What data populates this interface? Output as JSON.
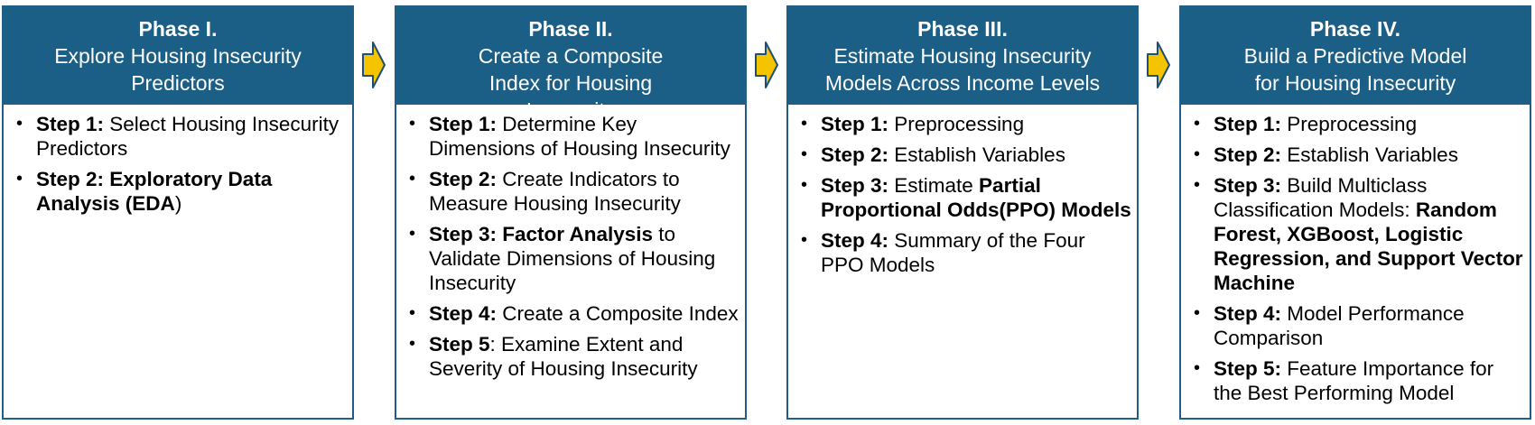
{
  "colors": {
    "header_bg": "#1b5e86",
    "border": "#1f5f86",
    "arrow_fill": "#f5c400",
    "arrow_stroke": "#1f4e79"
  },
  "phases": [
    {
      "title": "Phase I.",
      "subtitle": "Explore Housing Insecurity Predictors",
      "steps": [
        [
          {
            "t": "Step 1:",
            "b": true
          },
          {
            "t": " Select Housing Insecurity Predictors",
            "b": false
          }
        ],
        [
          {
            "t": "Step 2: Exploratory Data Analysis (EDA",
            "b": true
          },
          {
            "t": ")",
            "b": false
          }
        ]
      ]
    },
    {
      "title": "Phase II.",
      "subtitle": "Create a Composite Index for Housing Insecurity",
      "steps": [
        [
          {
            "t": "Step 1:",
            "b": true
          },
          {
            "t": " Determine Key Dimensions of Housing Insecurity",
            "b": false
          }
        ],
        [
          {
            "t": "Step 2:",
            "b": true
          },
          {
            "t": " Create Indicators to Measure Housing Insecurity",
            "b": false
          }
        ],
        [
          {
            "t": "Step 3: Factor Analysis",
            "b": true
          },
          {
            "t": " to Validate Dimensions of Housing Insecurity",
            "b": false
          }
        ],
        [
          {
            "t": "Step 4:",
            "b": true
          },
          {
            "t": " Create a Composite Index",
            "b": false
          }
        ],
        [
          {
            "t": "Step 5",
            "b": true
          },
          {
            "t": ": Examine Extent and Severity of Housing Insecurity",
            "b": false
          }
        ]
      ]
    },
    {
      "title": "Phase III.",
      "subtitle": "Estimate Housing Insecurity Models Across Income Levels",
      "steps": [
        [
          {
            "t": "Step 1:",
            "b": true
          },
          {
            "t": " Preprocessing",
            "b": false
          }
        ],
        [
          {
            "t": "Step 2:",
            "b": true
          },
          {
            "t": " Establish Variables",
            "b": false
          }
        ],
        [
          {
            "t": "Step 3:",
            "b": true
          },
          {
            "t": " Estimate ",
            "b": false
          },
          {
            "t": "Partial Proportional Odds(PPO) Models",
            "b": true
          }
        ],
        [
          {
            "t": "Step 4:",
            "b": true
          },
          {
            "t": " Summary of the Four PPO Models",
            "b": false
          }
        ]
      ]
    },
    {
      "title": "Phase IV.",
      "subtitle": "Build a Predictive Model for Housing Insecurity",
      "steps": [
        [
          {
            "t": "Step 1:",
            "b": true
          },
          {
            "t": " Preprocessing",
            "b": false
          }
        ],
        [
          {
            "t": "Step 2:",
            "b": true
          },
          {
            "t": " Establish Variables",
            "b": false
          }
        ],
        [
          {
            "t": "Step 3:",
            "b": true
          },
          {
            "t": " Build Multiclass Classification Models: ",
            "b": false
          },
          {
            "t": "Random Forest, XGBoost, Logistic Regression, and Support Vector Machine",
            "b": true
          }
        ],
        [
          {
            "t": "Step 4:",
            "b": true
          },
          {
            "t": " Model Performance Comparison",
            "b": false
          }
        ],
        [
          {
            "t": "Step 5:",
            "b": true
          },
          {
            "t": " Feature Importance for the Best Performing Model",
            "b": false
          }
        ]
      ]
    }
  ]
}
